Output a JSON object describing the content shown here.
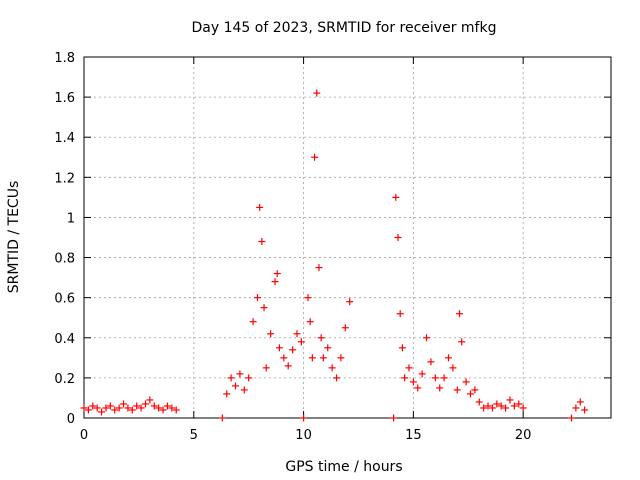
{
  "chart_data": {
    "type": "scatter",
    "title": "Day 145 of 2023, SRMTID for receiver mfkg",
    "xlabel": "GPS time / hours",
    "ylabel": "SRMTID / TECUs",
    "xlim": [
      0,
      24
    ],
    "ylim": [
      0,
      1.8
    ],
    "x_ticks": [
      0,
      5,
      10,
      15,
      20
    ],
    "x_tick_labels": [
      "0",
      "5",
      "10",
      "15",
      "20"
    ],
    "y_ticks": [
      0,
      0.2,
      0.4,
      0.6,
      0.8,
      1.0,
      1.2,
      1.4,
      1.6,
      1.8
    ],
    "y_tick_labels": [
      "0",
      "0.2",
      "0.4",
      "0.6",
      "0.8",
      "1",
      "1.2",
      "1.4",
      "1.6",
      "1.8"
    ],
    "grid": true,
    "marker": "+",
    "series": [
      {
        "name": "SRMTID",
        "color": "#ff0000",
        "x": [
          0.0,
          0.2,
          0.4,
          0.6,
          0.8,
          1.0,
          1.2,
          1.4,
          1.6,
          1.8,
          2.0,
          2.2,
          2.4,
          2.6,
          2.8,
          3.0,
          3.2,
          3.4,
          3.6,
          3.8,
          4.0,
          4.2,
          6.3,
          6.5,
          6.7,
          6.9,
          7.1,
          7.3,
          7.5,
          7.7,
          7.9,
          8.0,
          8.1,
          8.2,
          8.3,
          8.5,
          8.7,
          8.8,
          8.9,
          9.1,
          9.3,
          9.5,
          9.7,
          9.9,
          10.0,
          10.2,
          10.3,
          10.4,
          10.5,
          10.6,
          10.7,
          10.8,
          10.9,
          11.1,
          11.3,
          11.5,
          11.7,
          11.9,
          12.1,
          14.1,
          14.2,
          14.3,
          14.4,
          14.5,
          14.6,
          14.8,
          15.0,
          15.2,
          15.4,
          15.6,
          15.8,
          16.0,
          16.2,
          16.4,
          16.6,
          16.8,
          17.0,
          17.1,
          17.2,
          17.4,
          17.6,
          17.8,
          18.0,
          18.2,
          18.4,
          18.6,
          18.8,
          19.0,
          19.2,
          19.4,
          19.6,
          19.8,
          20.0,
          22.2,
          22.4,
          22.6,
          22.8
        ],
        "y": [
          0.05,
          0.04,
          0.06,
          0.05,
          0.03,
          0.05,
          0.06,
          0.04,
          0.05,
          0.07,
          0.05,
          0.04,
          0.06,
          0.05,
          0.07,
          0.09,
          0.06,
          0.05,
          0.04,
          0.06,
          0.05,
          0.04,
          0.0,
          0.12,
          0.2,
          0.16,
          0.22,
          0.14,
          0.2,
          0.48,
          0.6,
          1.05,
          0.88,
          0.55,
          0.25,
          0.42,
          0.68,
          0.72,
          0.35,
          0.3,
          0.26,
          0.34,
          0.42,
          0.38,
          0.0,
          0.6,
          0.48,
          0.3,
          1.3,
          1.62,
          0.75,
          0.4,
          0.3,
          0.35,
          0.25,
          0.2,
          0.3,
          0.45,
          0.58,
          0.0,
          1.1,
          0.9,
          0.52,
          0.35,
          0.2,
          0.25,
          0.18,
          0.15,
          0.22,
          0.4,
          0.28,
          0.2,
          0.15,
          0.2,
          0.3,
          0.25,
          0.14,
          0.52,
          0.38,
          0.18,
          0.12,
          0.14,
          0.08,
          0.05,
          0.06,
          0.05,
          0.07,
          0.06,
          0.05,
          0.09,
          0.06,
          0.07,
          0.05,
          0.0,
          0.05,
          0.08,
          0.04
        ]
      }
    ]
  }
}
